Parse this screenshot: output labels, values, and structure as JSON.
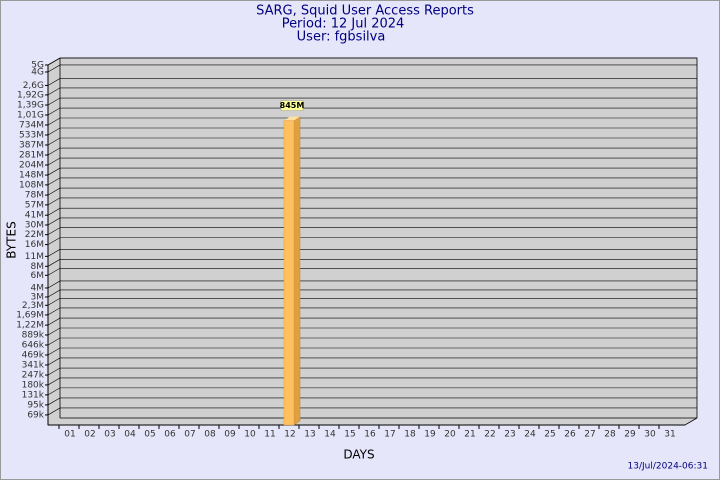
{
  "chart_data": {
    "type": "bar",
    "title": "SARG, Squid User Access Reports",
    "subtitles": [
      "Period: 12 Jul 2024",
      "User: fgbsilva"
    ],
    "x_label": "DAYS",
    "y_label": "BYTES",
    "footer": "13/Jul/2024-06:31",
    "categories": [
      "01",
      "02",
      "03",
      "04",
      "05",
      "06",
      "07",
      "08",
      "09",
      "10",
      "11",
      "12",
      "13",
      "14",
      "15",
      "16",
      "17",
      "18",
      "19",
      "20",
      "21",
      "22",
      "23",
      "24",
      "25",
      "26",
      "27",
      "28",
      "29",
      "30",
      "31"
    ],
    "values": [
      null,
      null,
      null,
      null,
      null,
      null,
      null,
      null,
      null,
      null,
      null,
      845000000,
      null,
      null,
      null,
      null,
      null,
      null,
      null,
      null,
      null,
      null,
      null,
      null,
      null,
      null,
      null,
      null,
      null,
      null,
      null
    ],
    "value_labels": [
      null,
      null,
      null,
      null,
      null,
      null,
      null,
      null,
      null,
      null,
      null,
      "845M",
      null,
      null,
      null,
      null,
      null,
      null,
      null,
      null,
      null,
      null,
      null,
      null,
      null,
      null,
      null,
      null,
      null,
      null,
      null
    ],
    "color": "#ffc060",
    "log_scale": true,
    "grid": true,
    "ylim": [
      50000,
      5000000000
    ],
    "yticks": [
      {
        "value": 69000,
        "label": "69k"
      },
      {
        "value": 95000,
        "label": "95k"
      },
      {
        "value": 131000,
        "label": "131k"
      },
      {
        "value": 180000,
        "label": "180k"
      },
      {
        "value": 247000,
        "label": "247k"
      },
      {
        "value": 341000,
        "label": "341k"
      },
      {
        "value": 469000,
        "label": "469k"
      },
      {
        "value": 646000,
        "label": "646k"
      },
      {
        "value": 889000,
        "label": "889k"
      },
      {
        "value": 1220000,
        "label": "1,22M"
      },
      {
        "value": 1690000,
        "label": "1,69M"
      },
      {
        "value": 2300000,
        "label": "2,3M"
      },
      {
        "value": 3000000,
        "label": "3M"
      },
      {
        "value": 4000000,
        "label": "4M"
      },
      {
        "value": 6000000,
        "label": "6M"
      },
      {
        "value": 8000000,
        "label": "8M"
      },
      {
        "value": 11000000,
        "label": "11M"
      },
      {
        "value": 16000000,
        "label": "16M"
      },
      {
        "value": 22000000,
        "label": "22M"
      },
      {
        "value": 30000000,
        "label": "30M"
      },
      {
        "value": 41000000,
        "label": "41M"
      },
      {
        "value": 57000000,
        "label": "57M"
      },
      {
        "value": 78000000,
        "label": "78M"
      },
      {
        "value": 108000000,
        "label": "108M"
      },
      {
        "value": 148000000,
        "label": "148M"
      },
      {
        "value": 204000000,
        "label": "204M"
      },
      {
        "value": 281000000,
        "label": "281M"
      },
      {
        "value": 387000000,
        "label": "387M"
      },
      {
        "value": 533000000,
        "label": "533M"
      },
      {
        "value": 734000000,
        "label": "734M"
      },
      {
        "value": 1010000000,
        "label": "1,01G"
      },
      {
        "value": 1390000000,
        "label": "1,39G"
      },
      {
        "value": 1920000000,
        "label": "1,92G"
      },
      {
        "value": 2600000000,
        "label": "2,6G"
      },
      {
        "value": 4000000000,
        "label": "4G"
      },
      {
        "value": 5000000000,
        "label": "5G"
      }
    ]
  }
}
